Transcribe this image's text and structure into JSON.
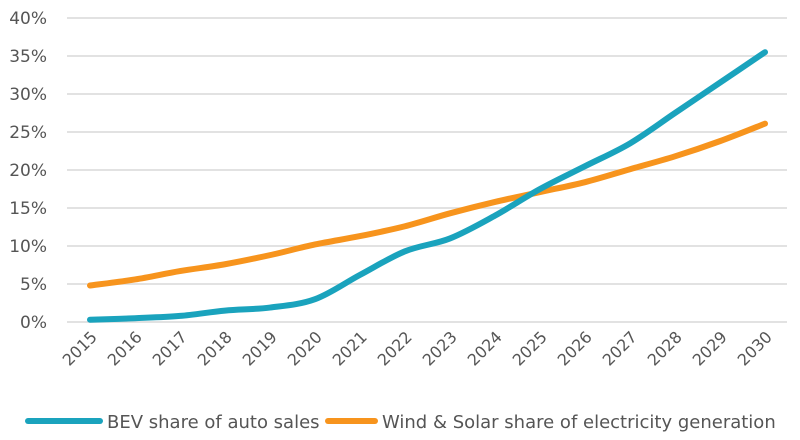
{
  "chart_data": {
    "type": "line",
    "title": "",
    "xlabel": "",
    "ylabel": "",
    "x": [
      "2015",
      "2016",
      "2017",
      "2018",
      "2019",
      "2020",
      "2021",
      "2022",
      "2023",
      "2024",
      "2025",
      "2026",
      "2027",
      "2028",
      "2029",
      "2030"
    ],
    "ylim": [
      0,
      40
    ],
    "yticks": [
      0,
      5,
      10,
      15,
      20,
      25,
      30,
      35,
      40
    ],
    "ytick_labels": [
      "0%",
      "5%",
      "10%",
      "15%",
      "20%",
      "25%",
      "30%",
      "35%",
      "40%"
    ],
    "grid": true,
    "legend_position": "bottom",
    "series": [
      {
        "name": "BEV share of auto sales",
        "color": "#1aa3bd",
        "values": [
          0.3,
          0.5,
          0.8,
          1.5,
          1.9,
          3.0,
          6.2,
          9.3,
          11.0,
          14.0,
          17.5,
          20.5,
          23.5,
          27.5,
          31.5,
          35.5
        ]
      },
      {
        "name": "Wind & Solar share of electricity generation",
        "color": "#f7941d",
        "values": [
          4.8,
          5.6,
          6.7,
          7.6,
          8.8,
          10.2,
          11.3,
          12.6,
          14.3,
          15.8,
          17.1,
          18.4,
          20.1,
          21.8,
          23.8,
          26.1
        ]
      }
    ]
  }
}
